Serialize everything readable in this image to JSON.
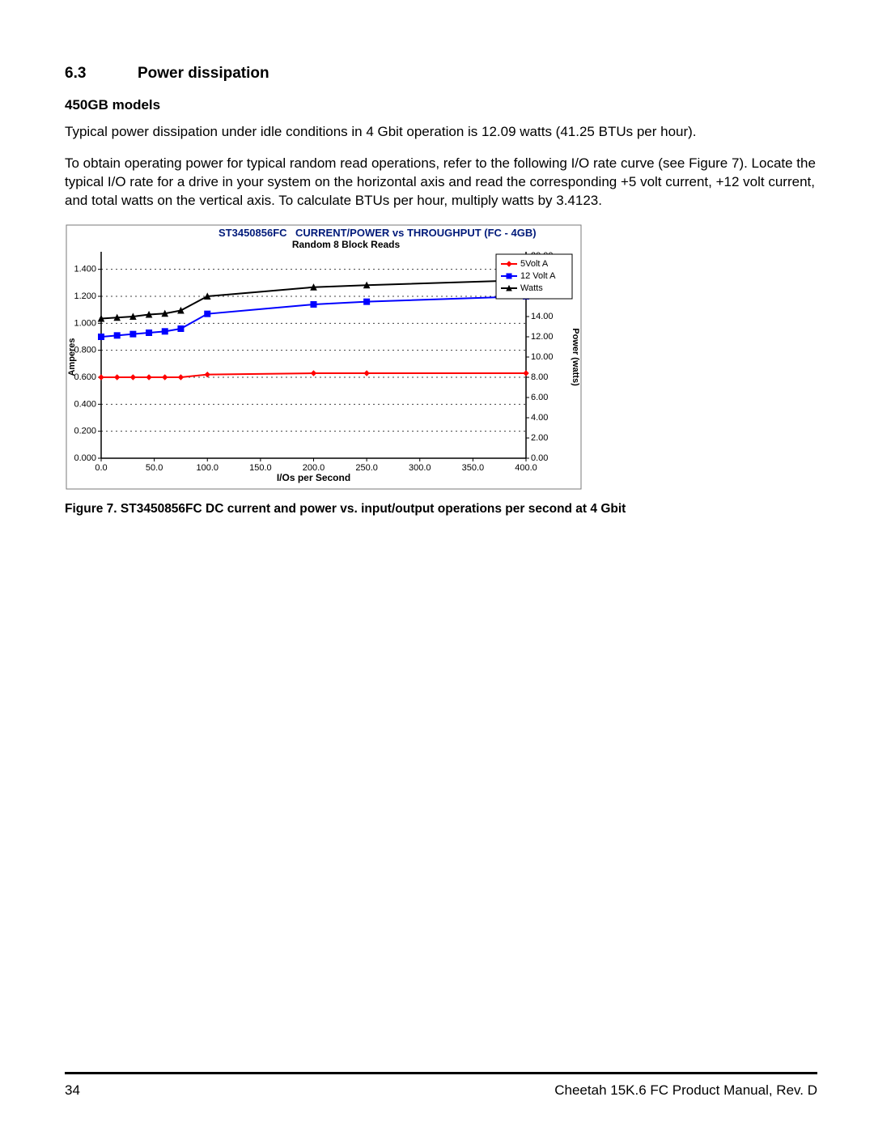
{
  "section": {
    "number": "6.3",
    "title": "Power dissipation",
    "subtitle": "450GB models",
    "para1": "Typical power dissipation under idle conditions in 4 Gbit operation is 12.09 watts (41.25 BTUs per hour).",
    "para2": "To obtain operating power for typical random read operations, refer to the following I/O rate curve (see Figure 7). Locate the typical I/O rate for a drive in your system on the horizontal axis and read the corresponding +5 volt current, +12 volt current, and total watts on the vertical axis. To calculate BTUs per hour, multiply watts by 3.4123."
  },
  "chart": {
    "type": "line",
    "title_left": "ST3450856FC",
    "title_right": "CURRENT/POWER vs THROUGHPUT (FC - 4GB)",
    "subtitle": "Random 8 Block Reads",
    "x_label": "I/Os per Second",
    "y_left_label": "Amperes",
    "y_right_label": "Power (watts)",
    "x_ticks": [
      0.0,
      50.0,
      100.0,
      150.0,
      200.0,
      250.0,
      300.0,
      350.0,
      400.0
    ],
    "x_tick_labels": [
      "0.0",
      "50.0",
      "100.0",
      "150.0",
      "200.0",
      "250.0",
      "300.0",
      "350.0",
      "400.0"
    ],
    "y_left_ticks": [
      0.0,
      0.2,
      0.4,
      0.6,
      0.8,
      1.0,
      1.2,
      1.4
    ],
    "y_left_tick_labels": [
      "0.000",
      "0.200",
      "0.400",
      "0.600",
      "0.800",
      "1.000",
      "1.200",
      "1.400"
    ],
    "y_right_ticks": [
      0.0,
      2.0,
      4.0,
      6.0,
      8.0,
      10.0,
      12.0,
      14.0,
      16.0,
      18.0,
      20.0
    ],
    "y_right_tick_labels": [
      "0.00",
      "2.00",
      "4.00",
      "6.00",
      "8.00",
      "10.00",
      "12.00",
      "14.00",
      "16.00",
      "18.00",
      "20.00"
    ],
    "xlim": [
      0,
      400
    ],
    "ylim_left": [
      0.0,
      1.5
    ],
    "ylim_right": [
      0.0,
      20.0
    ],
    "series": [
      {
        "name": "5Volt A",
        "axis": "left",
        "color": "#ff0000",
        "marker": "diamond",
        "marker_size": 6,
        "x": [
          0,
          15,
          30,
          45,
          60,
          75,
          100,
          200,
          250,
          400
        ],
        "y": [
          0.6,
          0.6,
          0.6,
          0.6,
          0.6,
          0.6,
          0.62,
          0.63,
          0.63,
          0.63
        ]
      },
      {
        "name": "12 Volt A",
        "axis": "left",
        "color": "#0000ff",
        "marker": "square",
        "marker_size": 7,
        "x": [
          0,
          15,
          30,
          45,
          60,
          75,
          100,
          200,
          250,
          400
        ],
        "y": [
          0.9,
          0.91,
          0.92,
          0.93,
          0.94,
          0.96,
          1.07,
          1.14,
          1.16,
          1.2
        ]
      },
      {
        "name": "Watts",
        "axis": "right",
        "color": "#000000",
        "marker": "triangle",
        "marker_size": 7,
        "x": [
          0,
          15,
          30,
          45,
          60,
          75,
          100,
          200,
          250,
          400
        ],
        "y": [
          13.8,
          13.9,
          14.0,
          14.2,
          14.3,
          14.6,
          16.0,
          16.9,
          17.1,
          17.6
        ]
      }
    ],
    "legend": {
      "position": "top-right",
      "items": [
        {
          "label": "5Volt A",
          "color": "#ff0000",
          "marker": "diamond"
        },
        {
          "label": "12 Volt A",
          "color": "#0000ff",
          "marker": "square"
        },
        {
          "label": "Watts",
          "color": "#000000",
          "marker": "triangle"
        }
      ]
    },
    "frame_color": "#7a7a7a",
    "grid_color": "#404040",
    "grid_dash": "2,4",
    "background_color": "#ffffff",
    "line_width": 2
  },
  "caption": "Figure 7.   ST3450856FC DC current and power vs. input/output operations per second at 4 Gbit",
  "footer": {
    "page_number": "34",
    "doc_title": "Cheetah 15K.6 FC Product Manual, Rev. D"
  }
}
